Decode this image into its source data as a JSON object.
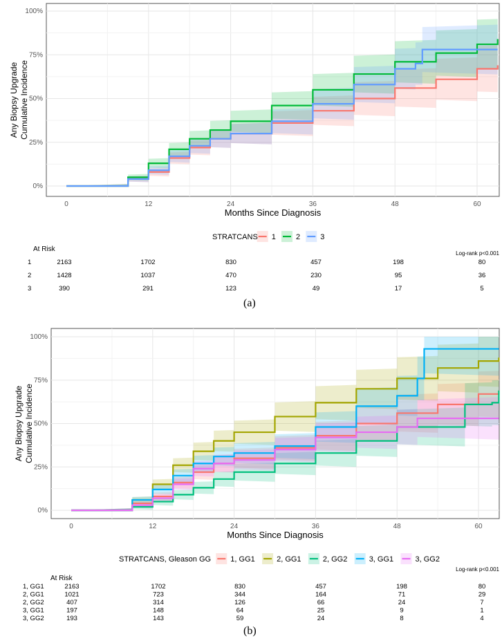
{
  "chart_data": [
    {
      "type": "line",
      "panel_label": "(a)",
      "xlabel": "Months Since Diagnosis",
      "ylabel": [
        "Any Biopsy Upgrade",
        "Cumulative Incidence"
      ],
      "xlim": [
        0,
        63
      ],
      "ylim": [
        0,
        100
      ],
      "xticks": [
        "0",
        "12",
        "24",
        "36",
        "48",
        "60"
      ],
      "yticks": [
        "0%",
        "25%",
        "50%",
        "75%",
        "100%"
      ],
      "grid": true,
      "legend_title": "STRATCANS",
      "legend_position": "bottom",
      "pvalue": "Log-rank p<0.001",
      "series": [
        {
          "name": "1",
          "color": "#F8766D",
          "x": [
            0,
            6,
            9,
            12,
            15,
            18,
            21,
            24,
            30,
            36,
            42,
            48,
            54,
            60,
            63
          ],
          "y": [
            0,
            0,
            4,
            8,
            16,
            22,
            27,
            30,
            36,
            43,
            50,
            56,
            61,
            67,
            69
          ]
        },
        {
          "name": "2",
          "color": "#00BA38",
          "x": [
            0,
            6,
            9,
            12,
            15,
            18,
            21,
            24,
            30,
            36,
            42,
            48,
            54,
            60,
            63
          ],
          "y": [
            0,
            0,
            5,
            13,
            21,
            27,
            32,
            37,
            46,
            55,
            64,
            71,
            76,
            81,
            84
          ]
        },
        {
          "name": "3",
          "color": "#619CFF",
          "x": [
            0,
            6,
            9,
            12,
            15,
            18,
            21,
            24,
            30,
            36,
            42,
            48,
            51,
            52,
            63
          ],
          "y": [
            0,
            0,
            4,
            9,
            17,
            23,
            27,
            30,
            37,
            47,
            58,
            67,
            70,
            78,
            78
          ]
        }
      ],
      "risk_table": {
        "title": "At Risk",
        "rows": [
          {
            "label": "1",
            "values": [
              "2163",
              "1702",
              "830",
              "457",
              "198",
              "80"
            ]
          },
          {
            "label": "2",
            "values": [
              "1428",
              "1037",
              "470",
              "230",
              "95",
              "36"
            ]
          },
          {
            "label": "3",
            "values": [
              "390",
              "291",
              "123",
              "49",
              "17",
              "5"
            ]
          }
        ]
      }
    },
    {
      "type": "line",
      "panel_label": "(b)",
      "xlabel": "Months Since Diagnosis",
      "ylabel": [
        "Any Biopsy Upgrade",
        "Cumulative Incidence"
      ],
      "xlim": [
        0,
        63
      ],
      "ylim": [
        0,
        100
      ],
      "xticks": [
        "0",
        "12",
        "24",
        "36",
        "48",
        "60"
      ],
      "yticks": [
        "0%",
        "25%",
        "50%",
        "75%",
        "100%"
      ],
      "grid": true,
      "legend_title": "STRATCANS, Gleason GG",
      "legend_position": "bottom",
      "pvalue": "Log-rank p<0.001",
      "series": [
        {
          "name": "1, GG1",
          "color": "#F8766D",
          "x": [
            0,
            6,
            9,
            12,
            15,
            18,
            21,
            24,
            30,
            36,
            42,
            48,
            54,
            60,
            63
          ],
          "y": [
            0,
            0,
            4,
            8,
            16,
            22,
            27,
            30,
            36,
            43,
            50,
            56,
            61,
            67,
            69
          ]
        },
        {
          "name": "2, GG1",
          "color": "#A3A500",
          "x": [
            0,
            6,
            9,
            12,
            15,
            18,
            21,
            24,
            30,
            36,
            42,
            48,
            54,
            60,
            63
          ],
          "y": [
            0,
            0,
            6,
            15,
            26,
            34,
            40,
            45,
            54,
            62,
            70,
            76,
            82,
            86,
            88
          ]
        },
        {
          "name": "2, GG2",
          "color": "#00BF7D",
          "x": [
            0,
            7,
            9,
            12,
            15,
            18,
            21,
            24,
            30,
            36,
            42,
            48,
            52,
            58,
            62,
            63
          ],
          "y": [
            0,
            0,
            2,
            5,
            9,
            13,
            18,
            22,
            27,
            33,
            40,
            48,
            48,
            61,
            62,
            69
          ]
        },
        {
          "name": "3, GG1",
          "color": "#00B0F6",
          "x": [
            0,
            6,
            9,
            12,
            15,
            18,
            21,
            24,
            30,
            36,
            42,
            48,
            51,
            52,
            63
          ],
          "y": [
            0,
            0,
            6,
            12,
            20,
            27,
            31,
            33,
            37,
            48,
            60,
            66,
            76,
            93,
            93
          ]
        },
        {
          "name": "3, GG2",
          "color": "#E76BF3",
          "x": [
            0,
            7,
            9,
            12,
            15,
            18,
            21,
            24,
            30,
            36,
            42,
            48,
            51,
            63
          ],
          "y": [
            0,
            0,
            3,
            7,
            15,
            24,
            27,
            29,
            35,
            42,
            45,
            48,
            53,
            53
          ]
        }
      ],
      "risk_table": {
        "title": "At Risk",
        "rows": [
          {
            "label": "1, GG1",
            "values": [
              "2163",
              "1702",
              "830",
              "457",
              "198",
              "80"
            ]
          },
          {
            "label": "2, GG1",
            "values": [
              "1021",
              "723",
              "344",
              "164",
              "71",
              "29"
            ]
          },
          {
            "label": "2, GG2",
            "values": [
              "407",
              "314",
              "126",
              "66",
              "24",
              "7"
            ]
          },
          {
            "label": "3, GG1",
            "values": [
              "197",
              "148",
              "64",
              "25",
              "9",
              "1"
            ]
          },
          {
            "label": "3, GG2",
            "values": [
              "193",
              "143",
              "59",
              "24",
              "8",
              "4"
            ]
          }
        ]
      }
    }
  ]
}
